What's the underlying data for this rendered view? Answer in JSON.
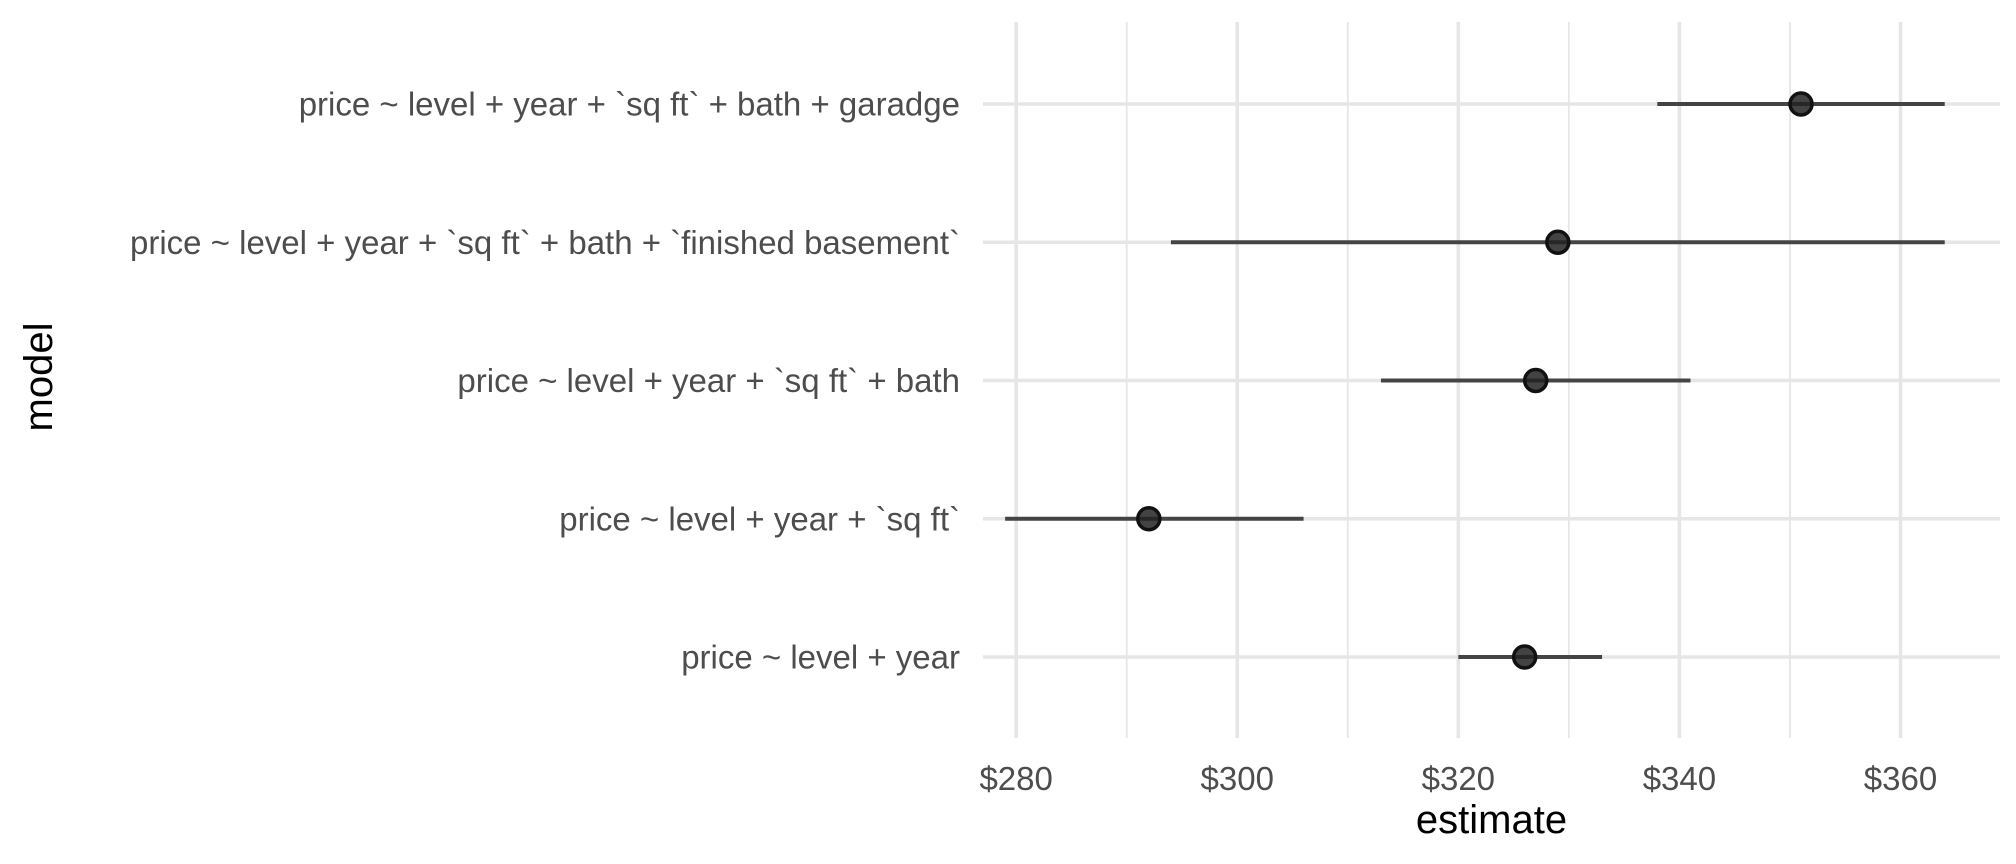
{
  "chart_data": {
    "type": "scatter",
    "subtype": "point-range",
    "xlabel": "estimate",
    "ylabel": "model",
    "xlim": [
      277,
      369
    ],
    "x_ticks": [
      280,
      300,
      320,
      340,
      360
    ],
    "x_tick_labels": [
      "$280",
      "$300",
      "$320",
      "$340",
      "$360"
    ],
    "grid": true,
    "legend": "none",
    "colors": {
      "point": "#222222",
      "line": "#444444",
      "grid": "#e6e6e6"
    },
    "categories": [
      "price ~ level + year + `sq ft` + bath + garadge",
      "price ~ level + year + `sq ft` + bath + `finished basement`",
      "price ~ level + year + `sq ft` + bath",
      "price ~ level + year + `sq ft`",
      "price ~ level + year"
    ],
    "estimates": [
      351,
      329,
      327,
      292,
      326
    ],
    "lower": [
      338,
      294,
      313,
      279,
      320
    ],
    "upper": [
      364,
      364,
      341,
      306,
      333
    ]
  }
}
